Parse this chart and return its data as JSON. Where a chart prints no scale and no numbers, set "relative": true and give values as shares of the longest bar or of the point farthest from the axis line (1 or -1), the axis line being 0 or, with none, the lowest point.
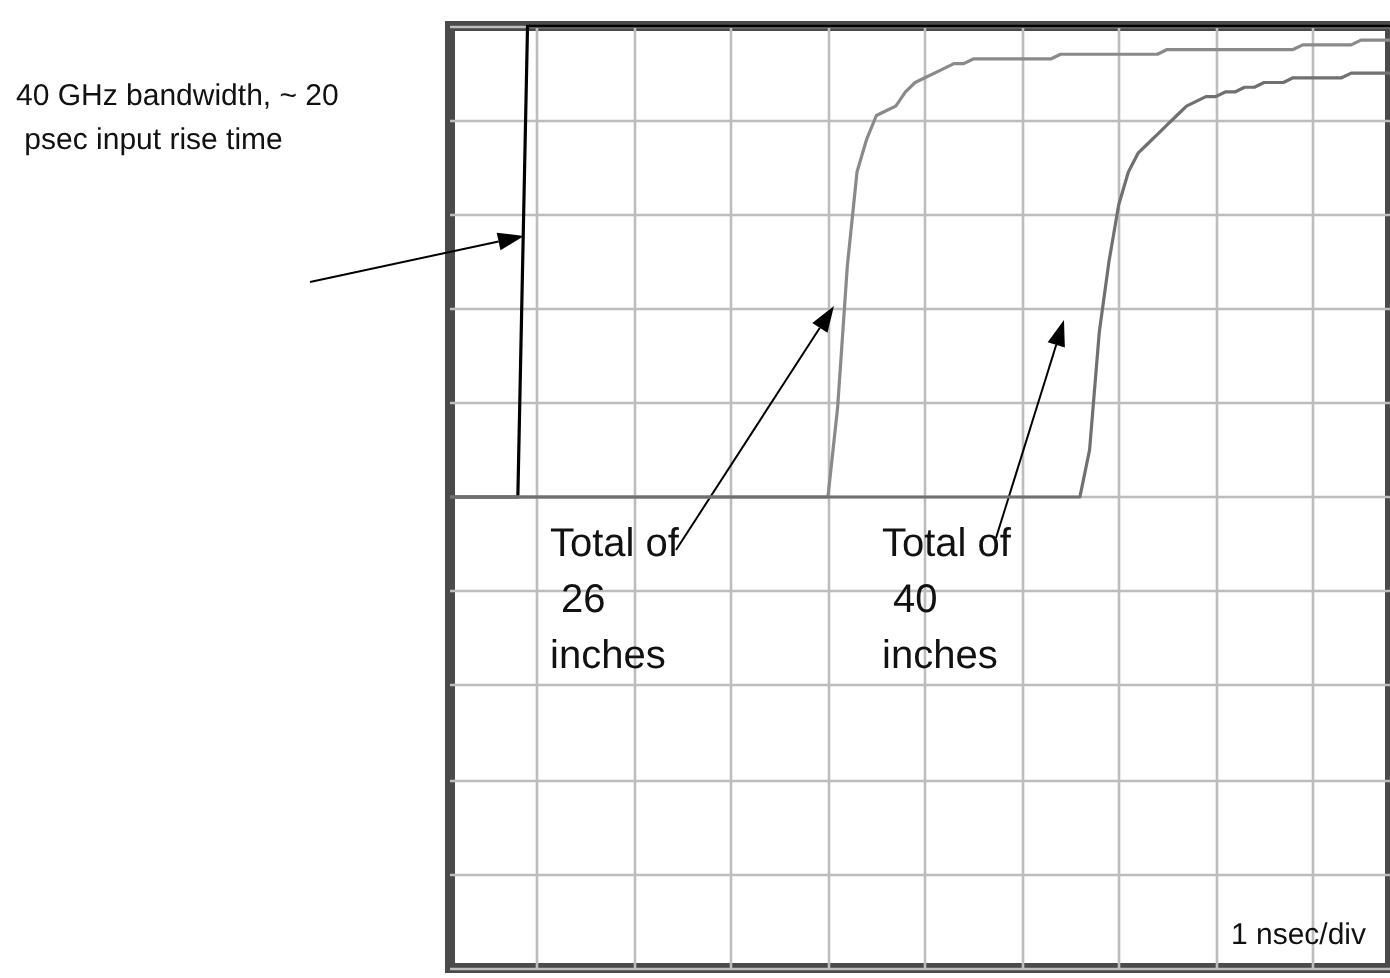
{
  "chart_data": {
    "type": "line",
    "relative": true,
    "grid": true,
    "categories": [
      null,
      null,
      null,
      null,
      null,
      null,
      null,
      null,
      null,
      null,
      null,
      null,
      null,
      null,
      null,
      null,
      null,
      null,
      null,
      null,
      null,
      null,
      null,
      null,
      null,
      null,
      null,
      null,
      null,
      null,
      null,
      null,
      null,
      null,
      null,
      null,
      null,
      null,
      null,
      null,
      null,
      null,
      null,
      null,
      null,
      null,
      null,
      null,
      null,
      null,
      null,
      null,
      null,
      null,
      null,
      null,
      null,
      null,
      null,
      null,
      null,
      null,
      null,
      null,
      null,
      null,
      null,
      null,
      null,
      null,
      null,
      null,
      null,
      null,
      null,
      null,
      null,
      null,
      null,
      null,
      null,
      null,
      null,
      null,
      null,
      null,
      null,
      null,
      null,
      null,
      null,
      null,
      null,
      null,
      null,
      null,
      null,
      null
    ],
    "series": [
      {
        "color": "#000000",
        "values": [
          0,
          0,
          0,
          0,
          0,
          0,
          0,
          0,
          1,
          1,
          1,
          1,
          1,
          1,
          1,
          1,
          1,
          1,
          1,
          1,
          1,
          1,
          1,
          1,
          1,
          1,
          1,
          1,
          1,
          1,
          1,
          1,
          1,
          1,
          1,
          1,
          1,
          1,
          1,
          1,
          1,
          1,
          1,
          1,
          1,
          1,
          1,
          1,
          1,
          1,
          1,
          1,
          1,
          1,
          1,
          1,
          1,
          1,
          1,
          1,
          1,
          1,
          1,
          1,
          1,
          1,
          1,
          1,
          1,
          1,
          1,
          1,
          1,
          1,
          1,
          1,
          1,
          1,
          1,
          1,
          1,
          1,
          1,
          1,
          1,
          1,
          1,
          1,
          1,
          1,
          1,
          1,
          1,
          1,
          1,
          1,
          1,
          1
        ]
      },
      {
        "color": "#8a8a8a",
        "values": [
          0,
          0,
          0,
          0,
          0,
          0,
          0,
          0,
          0,
          0,
          0,
          0,
          0,
          0,
          0,
          0,
          0,
          0,
          0,
          0,
          0,
          0,
          0,
          0,
          0,
          0,
          0,
          0,
          0,
          0,
          0,
          0,
          0,
          0,
          0,
          0,
          0,
          0,
          0,
          0,
          0.19,
          0.49,
          0.69,
          0.76,
          0.81,
          0.82,
          0.83,
          0.86,
          0.88,
          0.89,
          0.9,
          0.91,
          0.92,
          0.92,
          0.93,
          0.93,
          0.93,
          0.93,
          0.93,
          0.93,
          0.93,
          0.93,
          0.93,
          0.94,
          0.94,
          0.94,
          0.94,
          0.94,
          0.94,
          0.94,
          0.94,
          0.94,
          0.94,
          0.94,
          0.95,
          0.95,
          0.95,
          0.95,
          0.95,
          0.95,
          0.95,
          0.95,
          0.95,
          0.95,
          0.95,
          0.95,
          0.95,
          0.95,
          0.96,
          0.96,
          0.96,
          0.96,
          0.96,
          0.96,
          0.97,
          0.97,
          0.97,
          0.97
        ]
      },
      {
        "color": "#707070",
        "values": [
          0,
          0,
          0,
          0,
          0,
          0,
          0,
          0,
          0,
          0,
          0,
          0,
          0,
          0,
          0,
          0,
          0,
          0,
          0,
          0,
          0,
          0,
          0,
          0,
          0,
          0,
          0,
          0,
          0,
          0,
          0,
          0,
          0,
          0,
          0,
          0,
          0,
          0,
          0,
          0,
          0,
          0,
          0,
          0,
          0,
          0,
          0,
          0,
          0,
          0,
          0,
          0,
          0,
          0,
          0,
          0,
          0,
          0,
          0,
          0,
          0,
          0,
          0,
          0,
          0,
          0,
          0.1,
          0.35,
          0.5,
          0.62,
          0.69,
          0.73,
          0.75,
          0.77,
          0.79,
          0.81,
          0.83,
          0.84,
          0.85,
          0.85,
          0.86,
          0.86,
          0.87,
          0.87,
          0.88,
          0.88,
          0.88,
          0.89,
          0.89,
          0.89,
          0.89,
          0.89,
          0.89,
          0.9,
          0.9,
          0.9,
          0.9,
          0.9
        ]
      }
    ],
    "annotations": [
      "40 GHz bandwidth, ~ 20 psec input rise time",
      "Total of 26 inches",
      "Total of 40 inches",
      "1 nsec/div"
    ]
  }
}
